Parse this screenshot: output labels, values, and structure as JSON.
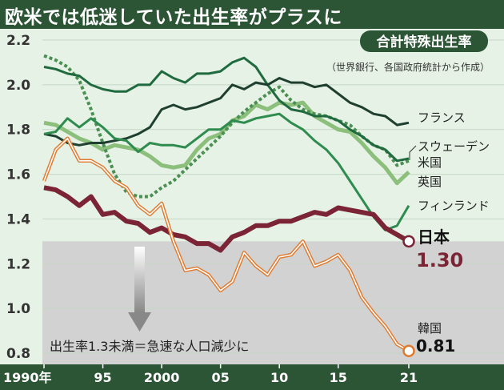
{
  "chart_data": {
    "type": "line",
    "title": "欧米では低迷していた出生率がプラスに",
    "subtitle_badge": "合計特殊出生率",
    "source": "（世界銀行、各国政府統計から作成）",
    "ylim": [
      0.8,
      2.2
    ],
    "yticks": [
      "0.8",
      "1.0",
      "1.2",
      "1.4",
      "1.6",
      "1.8",
      "2.0",
      "2.2"
    ],
    "xlim": [
      1990,
      2021
    ],
    "xticks": [
      {
        "year": 1990,
        "label": "1990年"
      },
      {
        "year": 1995,
        "label": "95"
      },
      {
        "year": 2000,
        "label": "2000"
      },
      {
        "year": 2005,
        "label": "05"
      },
      {
        "year": 2010,
        "label": "10"
      },
      {
        "year": 2015,
        "label": "15"
      },
      {
        "year": 2021,
        "label": "21"
      }
    ],
    "shaded_below": 1.3,
    "annotation": "出生率1.3未満＝急速な人口減少に",
    "colors": {
      "france": "#1f4030",
      "sweden": "#1f6a3e",
      "us": "#4c8f52",
      "uk": "#8cbf7c",
      "finland": "#2f8c4f",
      "japan": "#7a2436",
      "korea": "#e07a2f",
      "frame": "#2c5535",
      "shade": "#d2d2d2"
    },
    "series": [
      {
        "key": "france",
        "name": "フランス",
        "x": [
          1990,
          1991,
          1992,
          1993,
          1994,
          1995,
          1996,
          1997,
          1998,
          1999,
          2000,
          2001,
          2002,
          2003,
          2004,
          2005,
          2006,
          2007,
          2008,
          2009,
          2010,
          2011,
          2012,
          2013,
          2014,
          2015,
          2016,
          2017,
          2018,
          2019,
          2020,
          2021
        ],
        "y": [
          1.78,
          1.77,
          1.74,
          1.73,
          1.74,
          1.74,
          1.75,
          1.76,
          1.78,
          1.81,
          1.89,
          1.91,
          1.89,
          1.9,
          1.92,
          1.94,
          2.0,
          1.98,
          2.01,
          2.0,
          2.03,
          2.01,
          2.01,
          1.99,
          2.0,
          1.96,
          1.92,
          1.9,
          1.87,
          1.86,
          1.82,
          1.83
        ]
      },
      {
        "key": "sweden",
        "name": "スウェーデン",
        "x": [
          1990,
          1991,
          1992,
          1993,
          1994,
          1995,
          1996,
          1997,
          1998,
          1999,
          2000,
          2001,
          2002,
          2003,
          2004,
          2005,
          2006,
          2007,
          2008,
          2009,
          2010,
          2011,
          2012,
          2013,
          2014,
          2015,
          2016,
          2017,
          2018,
          2019,
          2020,
          2021
        ],
        "y": [
          2.08,
          2.07,
          2.05,
          2.04,
          2.0,
          1.98,
          1.97,
          1.97,
          2.0,
          2.0,
          2.06,
          2.03,
          2.01,
          2.05,
          2.05,
          2.06,
          2.1,
          2.12,
          2.08,
          2.0,
          1.93,
          1.89,
          1.88,
          1.86,
          1.86,
          1.84,
          1.8,
          1.77,
          1.73,
          1.71,
          1.66,
          1.67
        ]
      },
      {
        "key": "us",
        "name": "米国",
        "x": [
          1990,
          1991,
          1992,
          1993,
          1994,
          1995,
          1996,
          1997,
          1998,
          1999,
          2000,
          2001,
          2002,
          2003,
          2004,
          2005,
          2006,
          2007,
          2008,
          2009,
          2010,
          2011,
          2012,
          2013,
          2014,
          2015,
          2016,
          2017,
          2018,
          2019,
          2020,
          2021
        ],
        "y": [
          2.13,
          2.11,
          2.08,
          2.02,
          1.89,
          1.74,
          1.6,
          1.52,
          1.5,
          1.5,
          1.54,
          1.57,
          1.62,
          1.67,
          1.72,
          1.77,
          1.83,
          1.88,
          1.92,
          1.96,
          1.99,
          1.93,
          1.89,
          1.87,
          1.86,
          1.84,
          1.82,
          1.77,
          1.73,
          1.71,
          1.64,
          1.66
        ]
      },
      {
        "key": "uk",
        "name": "英国",
        "x": [
          1990,
          1991,
          1992,
          1993,
          1994,
          1995,
          1996,
          1997,
          1998,
          1999,
          2000,
          2001,
          2002,
          2003,
          2004,
          2005,
          2006,
          2007,
          2008,
          2009,
          2010,
          2011,
          2012,
          2013,
          2014,
          2015,
          2016,
          2017,
          2018,
          2019,
          2020,
          2021
        ],
        "y": [
          1.83,
          1.82,
          1.79,
          1.76,
          1.74,
          1.71,
          1.73,
          1.72,
          1.71,
          1.68,
          1.64,
          1.63,
          1.64,
          1.71,
          1.76,
          1.78,
          1.84,
          1.86,
          1.91,
          1.89,
          1.92,
          1.91,
          1.92,
          1.86,
          1.83,
          1.8,
          1.79,
          1.74,
          1.68,
          1.63,
          1.56,
          1.61
        ]
      },
      {
        "key": "finland",
        "name": "フィンランド",
        "x": [
          1990,
          1991,
          1992,
          1993,
          1994,
          1995,
          1996,
          1997,
          1998,
          1999,
          2000,
          2001,
          2002,
          2003,
          2004,
          2005,
          2006,
          2007,
          2008,
          2009,
          2010,
          2011,
          2012,
          2013,
          2014,
          2015,
          2016,
          2017,
          2018,
          2019,
          2020,
          2021
        ],
        "y": [
          1.78,
          1.79,
          1.85,
          1.81,
          1.85,
          1.81,
          1.76,
          1.75,
          1.7,
          1.74,
          1.73,
          1.73,
          1.72,
          1.76,
          1.8,
          1.8,
          1.84,
          1.83,
          1.85,
          1.86,
          1.87,
          1.83,
          1.8,
          1.75,
          1.71,
          1.65,
          1.57,
          1.49,
          1.41,
          1.35,
          1.37,
          1.46
        ]
      },
      {
        "key": "japan",
        "name": "日本",
        "end_label": "1.30",
        "x": [
          1990,
          1991,
          1992,
          1993,
          1994,
          1995,
          1996,
          1997,
          1998,
          1999,
          2000,
          2001,
          2002,
          2003,
          2004,
          2005,
          2006,
          2007,
          2008,
          2009,
          2010,
          2011,
          2012,
          2013,
          2014,
          2015,
          2016,
          2017,
          2018,
          2019,
          2020,
          2021
        ],
        "y": [
          1.54,
          1.53,
          1.5,
          1.46,
          1.5,
          1.42,
          1.43,
          1.39,
          1.38,
          1.34,
          1.36,
          1.33,
          1.32,
          1.29,
          1.29,
          1.26,
          1.32,
          1.34,
          1.37,
          1.37,
          1.39,
          1.39,
          1.41,
          1.43,
          1.42,
          1.45,
          1.44,
          1.43,
          1.42,
          1.36,
          1.33,
          1.3
        ]
      },
      {
        "key": "korea",
        "name": "韓国",
        "end_label": "0.81",
        "x": [
          1990,
          1991,
          1992,
          1993,
          1994,
          1995,
          1996,
          1997,
          1998,
          1999,
          2000,
          2001,
          2002,
          2003,
          2004,
          2005,
          2006,
          2007,
          2008,
          2009,
          2010,
          2011,
          2012,
          2013,
          2014,
          2015,
          2016,
          2017,
          2018,
          2019,
          2020,
          2021
        ],
        "y": [
          1.57,
          1.71,
          1.76,
          1.66,
          1.66,
          1.63,
          1.57,
          1.54,
          1.46,
          1.42,
          1.47,
          1.3,
          1.17,
          1.18,
          1.15,
          1.08,
          1.12,
          1.25,
          1.19,
          1.15,
          1.23,
          1.24,
          1.3,
          1.19,
          1.21,
          1.24,
          1.17,
          1.05,
          0.98,
          0.92,
          0.84,
          0.81
        ]
      }
    ]
  }
}
